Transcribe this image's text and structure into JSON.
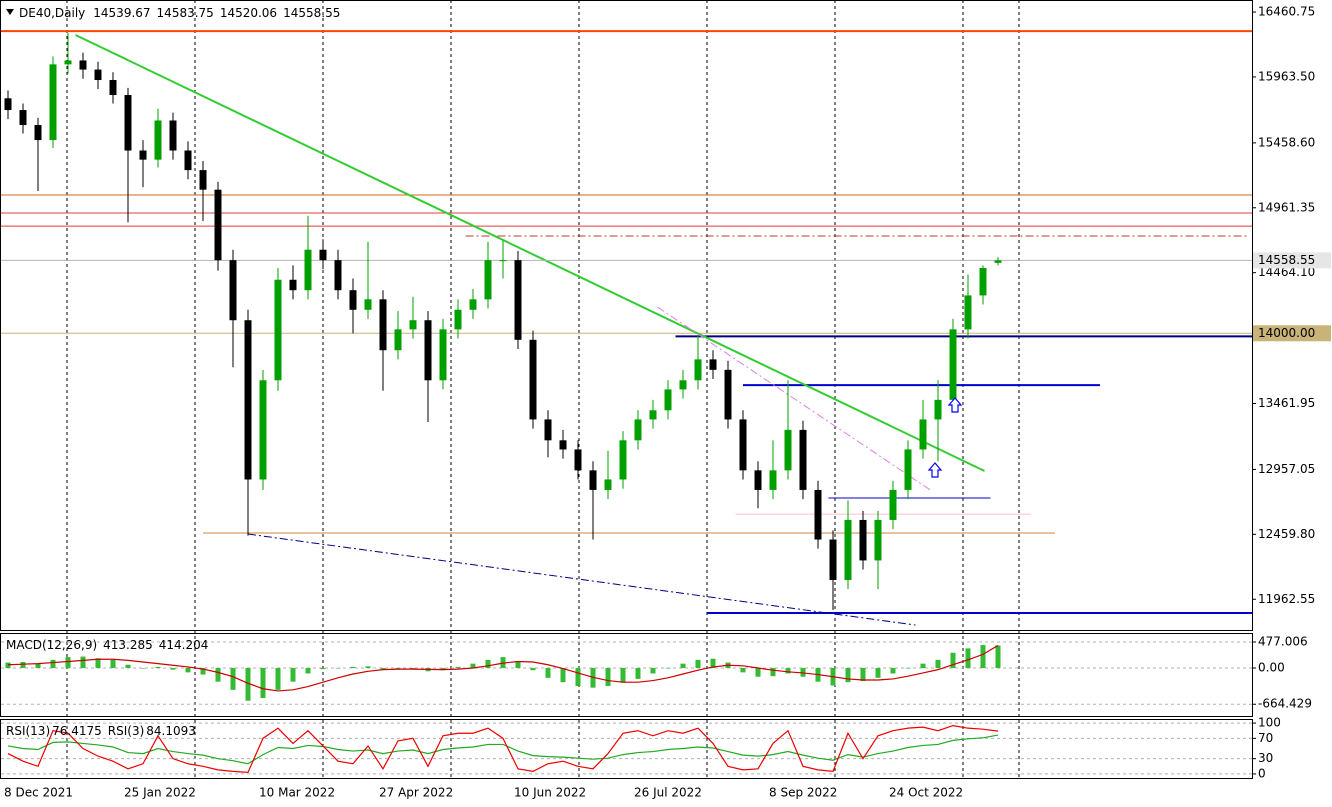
{
  "chart_data": [
    {
      "type": "candlestick",
      "title": "DE40,Daily",
      "categories": [
        "8 Dec 2021",
        null,
        null,
        null,
        null,
        null,
        null,
        null,
        "25 Jan 2022",
        null,
        null,
        null,
        null,
        null,
        null,
        null,
        null,
        "10 Mar 2022",
        null,
        null,
        null,
        null,
        null,
        null,
        null,
        "27 Apr 2022",
        null,
        null,
        null,
        null,
        null,
        null,
        null,
        null,
        "10 Jun 2022",
        null,
        null,
        null,
        null,
        null,
        null,
        null,
        "26 Jul 2022",
        null,
        null,
        null,
        null,
        null,
        null,
        null,
        null,
        "8 Sep 2022",
        null,
        null,
        null,
        null,
        null,
        null,
        null,
        "24 Oct 2022",
        null,
        null,
        null,
        null,
        null,
        null,
        null
      ],
      "open": [
        15800,
        15710,
        15595,
        15480,
        16060,
        16090,
        16020,
        15940,
        15825,
        15400,
        15330,
        15630,
        15400,
        15250,
        15100,
        14560,
        14100,
        12880,
        13640,
        14410,
        14330,
        14640,
        14560,
        14330,
        14180,
        14260,
        13870,
        14030,
        14100,
        13640,
        14030,
        14180,
        14260,
        14560,
        14560,
        13950,
        13340,
        13180,
        13110,
        12950,
        12800,
        12880,
        13180,
        13340,
        13410,
        13570,
        13640,
        13800,
        13720,
        13340,
        12950,
        12800,
        12950,
        13260,
        12800,
        12420,
        12110,
        12570,
        12260,
        12570,
        12800,
        13110,
        13340,
        13490,
        14030,
        14290,
        14539.67
      ],
      "high": [
        15860,
        15760,
        15650,
        16120,
        16300,
        16150,
        16080,
        16000,
        15880,
        15480,
        15720,
        15690,
        15470,
        15320,
        15160,
        14640,
        14180,
        13720,
        14500,
        14520,
        14900,
        14720,
        14640,
        14420,
        14700,
        14330,
        14170,
        14280,
        14170,
        14110,
        14260,
        14340,
        14700,
        14710,
        14630,
        14020,
        13410,
        13260,
        13180,
        13020,
        13100,
        13250,
        13410,
        13490,
        13640,
        13720,
        13980,
        13870,
        13790,
        13410,
        13020,
        13180,
        13640,
        13330,
        12870,
        12490,
        12720,
        12640,
        12640,
        12870,
        13180,
        13490,
        13640,
        14110,
        14450,
        14520,
        14583.75
      ],
      "low": [
        15640,
        15530,
        15090,
        15420,
        15990,
        15950,
        15870,
        15760,
        14850,
        15120,
        15270,
        15330,
        15180,
        14860,
        14480,
        13740,
        12450,
        12800,
        13560,
        14260,
        14260,
        14490,
        14260,
        14000,
        14110,
        13560,
        13800,
        13960,
        13320,
        13570,
        13960,
        14110,
        14190,
        14420,
        13880,
        13270,
        13050,
        13040,
        12880,
        12420,
        12730,
        12810,
        13110,
        13270,
        13340,
        13500,
        13570,
        13650,
        13270,
        12880,
        12660,
        12730,
        12880,
        12730,
        12350,
        11880,
        12040,
        12190,
        12040,
        12500,
        12730,
        13040,
        13020,
        13420,
        13960,
        14220,
        14520.06
      ],
      "close": [
        15710,
        15595,
        15480,
        16060,
        16090,
        16020,
        15940,
        15825,
        15400,
        15330,
        15630,
        15400,
        15250,
        15100,
        14560,
        14100,
        12880,
        13640,
        14410,
        14330,
        14640,
        14560,
        14330,
        14180,
        14260,
        13870,
        14030,
        14100,
        13640,
        14030,
        14180,
        14260,
        14560,
        14560,
        13950,
        13340,
        13180,
        13110,
        12950,
        12800,
        12880,
        13180,
        13340,
        13410,
        13570,
        13640,
        13800,
        13720,
        13340,
        12950,
        12800,
        12950,
        13260,
        12800,
        12420,
        12110,
        12570,
        12260,
        12570,
        12800,
        13110,
        13340,
        13490,
        14030,
        14290,
        14500,
        14558.55
      ],
      "up_color": "#00a000",
      "down_color": "#000000",
      "bid_color": "#b4b4b4",
      "ylim": [
        11727,
        16553
      ],
      "yticks": [
        16460.75,
        {
          "value": 15963.5,
          "label": "15963.50"
        },
        {
          "value": 15458.6,
          "label": "15458.60"
        },
        14961.35,
        {
          "value": 14464.1,
          "label": "14464.10"
        },
        13461.95,
        12957.05,
        {
          "value": 12459.8,
          "label": "12459.80"
        },
        11962.55
      ],
      "grid": false,
      "levels": [
        {
          "value": 16315,
          "color": "#ff4500",
          "style": "thick"
        },
        {
          "value": 15059,
          "color": "#d2691e"
        },
        {
          "value": 14921,
          "color": "#e03c3c"
        },
        {
          "value": 14821,
          "color": "#e03c3c"
        },
        {
          "value": 14745,
          "color": "#c83232",
          "style": "dashdot",
          "from": 30.5,
          "to": 82.7
        },
        {
          "value": 14000,
          "color": "#c8b478",
          "label": "14000.00"
        },
        {
          "value": 13976,
          "color": "#000080",
          "style": "thick",
          "from": 44.5
        },
        {
          "value": 13603,
          "color": "#0000cd",
          "style": "thick",
          "from": 49,
          "to": 72.8
        },
        {
          "value": 12738,
          "color": "#0000cd",
          "from": 54.7,
          "to": 65.5
        },
        {
          "value": 12615,
          "color": "#ffc0cb",
          "from": 48.5,
          "to": 68.2
        },
        {
          "value": 12470,
          "color": "#cd853f",
          "from": 13,
          "to": 69.8
        },
        {
          "value": 11857,
          "color": "#0000cd",
          "style": "thick",
          "from": 46.6
        }
      ],
      "trendlines": [
        {
          "color": "#33cc33",
          "style": "thick",
          "points": [
            [
              4.5,
              16285
            ],
            [
              65.1,
              12945
            ]
          ]
        },
        {
          "color": "#000080",
          "style": "dashdot",
          "points": [
            [
              16,
              12462
            ],
            [
              60.5,
              11765
            ]
          ]
        },
        {
          "color": "#e080e0",
          "style": "dashdot",
          "points": [
            [
              43.3,
              14201
            ],
            [
              61.5,
              12799
            ]
          ]
        }
      ]
    },
    {
      "type": "bar",
      "title": "MACD(12,26,9)",
      "series": [
        {
          "type": "bar",
          "color": "#33bb33",
          "values": [
            100,
            110,
            80,
            150,
            200,
            210,
            180,
            150,
            60,
            0,
            20,
            -30,
            -80,
            -120,
            -250,
            -400,
            -600,
            -550,
            -400,
            -250,
            -100,
            -20,
            0,
            20,
            30,
            -20,
            -30,
            0,
            -60,
            -40,
            20,
            80,
            150,
            200,
            120,
            -40,
            -180,
            -260,
            -330,
            -360,
            -330,
            -270,
            -200,
            -100,
            0,
            80,
            150,
            170,
            100,
            -80,
            -160,
            -150,
            -100,
            -160,
            -250,
            -320,
            -260,
            -240,
            -180,
            -100,
            0,
            80,
            150,
            280,
            360,
            420,
            413.285
          ]
        },
        {
          "type": "line",
          "color": "#cc0000",
          "values": [
            60,
            70,
            80,
            100,
            120,
            140,
            160,
            160,
            140,
            110,
            80,
            50,
            20,
            -20,
            -80,
            -160,
            -280,
            -380,
            -420,
            -400,
            -340,
            -260,
            -180,
            -110,
            -60,
            -30,
            -20,
            -20,
            -25,
            -30,
            -20,
            0,
            40,
            90,
            120,
            110,
            60,
            -10,
            -90,
            -170,
            -230,
            -260,
            -260,
            -230,
            -180,
            -110,
            -40,
            20,
            50,
            40,
            0,
            -40,
            -70,
            -90,
            -120,
            -160,
            -200,
            -220,
            -220,
            -200,
            -150,
            -90,
            -30,
            60,
            150,
            250,
            414.204
          ]
        }
      ],
      "ylim": [
        -880,
        642
      ],
      "yticks": [
        477.006,
        {
          "value": 0,
          "label": "0.00"
        },
        -664.429
      ],
      "grid": true
    },
    {
      "type": "line",
      "series": [
        {
          "name": "RSI(13)",
          "color": "#22aa22",
          "values": [
            55,
            50,
            48,
            62,
            63,
            60,
            57,
            53,
            42,
            40,
            50,
            44,
            40,
            37,
            30,
            26,
            20,
            38,
            52,
            50,
            56,
            54,
            48,
            45,
            47,
            40,
            45,
            47,
            40,
            48,
            51,
            53,
            58,
            58,
            45,
            36,
            34,
            33,
            31,
            29,
            31,
            38,
            42,
            44,
            48,
            50,
            53,
            51,
            44,
            37,
            35,
            38,
            44,
            37,
            31,
            27,
            38,
            33,
            40,
            45,
            52,
            56,
            58,
            66,
            69,
            71,
            76.4175
          ]
        },
        {
          "name": "RSI(3)",
          "color": "#ee0000",
          "values": [
            40,
            25,
            15,
            85,
            80,
            50,
            35,
            25,
            10,
            20,
            75,
            30,
            20,
            15,
            8,
            5,
            3,
            70,
            90,
            60,
            85,
            55,
            25,
            20,
            55,
            10,
            65,
            70,
            15,
            75,
            80,
            80,
            90,
            70,
            10,
            5,
            20,
            25,
            15,
            10,
            40,
            80,
            85,
            75,
            85,
            80,
            90,
            60,
            15,
            8,
            10,
            60,
            85,
            15,
            8,
            5,
            80,
            30,
            75,
            85,
            90,
            92,
            85,
            95,
            90,
            88,
            84.1093
          ]
        }
      ],
      "ylim": [
        -8,
        108
      ],
      "yticks": [
        100,
        70,
        30,
        0
      ],
      "grid": true
    }
  ]
}
